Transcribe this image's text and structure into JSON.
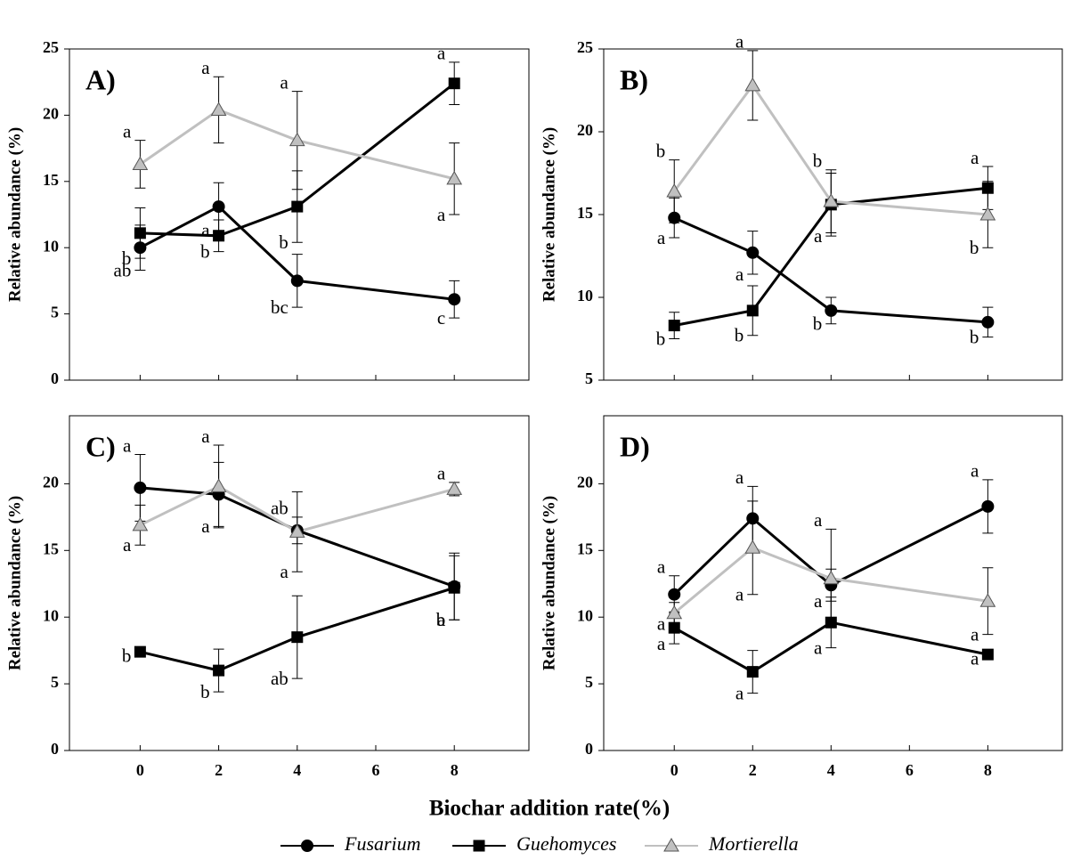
{
  "chart_data": [
    {
      "type": "line",
      "title": "A)",
      "ylabel": "Relative abundance (%)",
      "x": [
        0,
        2,
        4,
        8
      ],
      "xlim": [
        -1.8,
        9.9
      ],
      "xticks": [
        0,
        2,
        4,
        6,
        8
      ],
      "ylim": [
        0,
        25
      ],
      "yticks": [
        0,
        5,
        10,
        15,
        20,
        25
      ],
      "series": [
        {
          "values": [
            10.0,
            13.1,
            7.5,
            6.1
          ],
          "errors": [
            1.7,
            1.8,
            2.0,
            1.4
          ],
          "letters": [
            "ab",
            "a",
            "bc",
            "c"
          ]
        },
        {
          "values": [
            11.1,
            10.9,
            13.1,
            22.4
          ],
          "errors": [
            1.9,
            1.2,
            2.7,
            1.6
          ],
          "letters": [
            "b",
            "b",
            "b",
            "a"
          ]
        },
        {
          "values": [
            16.3,
            20.4,
            18.1,
            15.2
          ],
          "errors": [
            1.8,
            2.5,
            3.7,
            2.7
          ],
          "letters": [
            "a",
            "a",
            "a",
            "a"
          ]
        }
      ]
    },
    {
      "type": "line",
      "title": "B)",
      "ylabel": "Relative abundance (%)",
      "x": [
        0,
        2,
        4,
        8
      ],
      "xlim": [
        -1.8,
        9.9
      ],
      "xticks": [
        0,
        2,
        4,
        6,
        8
      ],
      "ylim": [
        5,
        25
      ],
      "yticks": [
        5,
        10,
        15,
        20,
        25
      ],
      "series": [
        {
          "values": [
            14.8,
            12.7,
            9.2,
            8.5
          ],
          "errors": [
            1.2,
            1.3,
            0.8,
            0.9
          ],
          "letters": [
            "a",
            "a",
            "b",
            "b"
          ]
        },
        {
          "values": [
            8.3,
            9.2,
            15.6,
            16.6
          ],
          "errors": [
            0.8,
            1.5,
            1.9,
            1.3
          ],
          "letters": [
            "b",
            "b",
            "a",
            "a"
          ]
        },
        {
          "values": [
            16.4,
            22.8,
            15.8,
            15.0
          ],
          "errors": [
            1.9,
            2.1,
            1.9,
            2.0
          ],
          "letters": [
            "b",
            "a",
            "b",
            "b"
          ]
        }
      ]
    },
    {
      "type": "line",
      "title": "C)",
      "ylabel": "Relative abundance (%)",
      "x": [
        0,
        2,
        4,
        8
      ],
      "xlim": [
        -1.8,
        9.9
      ],
      "xticks": [
        0,
        2,
        4,
        6,
        8
      ],
      "ylim": [
        0,
        25.1
      ],
      "yticks": [
        0,
        5,
        10,
        15,
        20
      ],
      "series": [
        {
          "values": [
            19.7,
            19.2,
            16.5,
            12.3
          ],
          "errors": [
            2.5,
            2.4,
            1.0,
            2.5
          ],
          "letters": [
            "a",
            "a",
            "ab",
            "b"
          ]
        },
        {
          "values": [
            7.4,
            6.0,
            8.5,
            12.2
          ],
          "errors": [
            0.3,
            1.6,
            3.1,
            2.4
          ],
          "letters": [
            "b",
            "b",
            "ab",
            "a"
          ]
        },
        {
          "values": [
            16.9,
            19.8,
            16.4,
            19.6
          ],
          "errors": [
            1.5,
            3.1,
            3.0,
            0.5
          ],
          "letters": [
            "a",
            "a",
            "a",
            "a"
          ]
        }
      ]
    },
    {
      "type": "line",
      "title": "D)",
      "ylabel": "Relative abundance (%)",
      "x": [
        0,
        2,
        4,
        8
      ],
      "xlim": [
        -1.8,
        9.9
      ],
      "xticks": [
        0,
        2,
        4,
        6,
        8
      ],
      "ylim": [
        0,
        25.1
      ],
      "yticks": [
        0,
        5,
        10,
        15,
        20
      ],
      "series": [
        {
          "values": [
            11.7,
            17.4,
            12.4,
            18.3
          ],
          "errors": [
            1.4,
            2.4,
            1.2,
            2.0
          ],
          "letters": [
            "a",
            "a",
            "a",
            "a"
          ]
        },
        {
          "values": [
            9.2,
            5.9,
            9.6,
            7.2
          ],
          "errors": [
            1.2,
            1.6,
            1.9,
            0.3
          ],
          "letters": [
            "a",
            "a",
            "a",
            "a"
          ]
        },
        {
          "values": [
            10.3,
            15.2,
            12.9,
            11.2
          ],
          "errors": [
            0.8,
            3.5,
            3.7,
            2.5
          ],
          "letters": [
            "a",
            "a",
            "a",
            "a"
          ]
        }
      ]
    }
  ],
  "xlabel": "Biochar addition rate(%)",
  "legend": [
    {
      "name": "Fusarium",
      "color": "#000000",
      "marker": "circle"
    },
    {
      "name": "Guehomyces",
      "color": "#000000",
      "marker": "square"
    },
    {
      "name": "Mortierella",
      "color": "#c0c0c0",
      "marker": "triangle"
    }
  ]
}
